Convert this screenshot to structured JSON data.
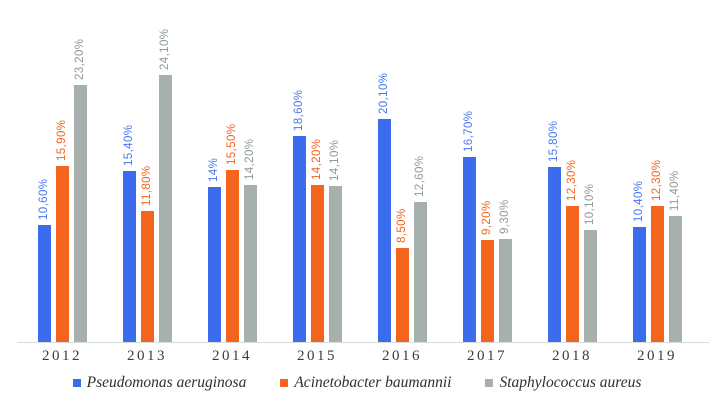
{
  "chart_data": {
    "type": "bar",
    "title": "",
    "xlabel": "",
    "ylabel": "",
    "categories": [
      "2012",
      "2013",
      "2014",
      "2015",
      "2016",
      "2017",
      "2018",
      "2019"
    ],
    "series": [
      {
        "name": "Pseudomonas aeruginosa",
        "color": "#3b6cee",
        "label_color": "#4a77ee",
        "values": [
          10.6,
          15.4,
          14,
          18.6,
          20.1,
          16.7,
          15.8,
          10.4
        ],
        "labels": [
          "10,60%",
          "15,40%",
          "14%",
          "18,60%",
          "20,10%",
          "16,70%",
          "15,80%",
          "10,40%"
        ]
      },
      {
        "name": "Acinetobacter baumannii",
        "color": "#f4641d",
        "label_color": "#f4641d",
        "values": [
          15.9,
          11.8,
          15.5,
          14.2,
          8.5,
          9.2,
          12.3,
          12.3
        ],
        "labels": [
          "15,90%",
          "11,80%",
          "15,50%",
          "14,20%",
          "8,50%",
          "9,20%",
          "12,30%",
          "12,30%"
        ]
      },
      {
        "name": "Staphylococcus aureus",
        "color": "#a8b0ae",
        "label_color": "#8f9b98",
        "values": [
          23.2,
          24.1,
          14.2,
          14.1,
          12.6,
          9.3,
          10.1,
          11.4
        ],
        "labels": [
          "23,20%",
          "24,10%",
          "14,20%",
          "14,10%",
          "12,60%",
          "9,30%",
          "10,10%",
          "11,40%"
        ]
      }
    ],
    "ylim": [
      0,
      25
    ],
    "value_suffix": "%",
    "decimal_separator": ",",
    "grid": false,
    "legend_position": "bottom",
    "axis_color": "#d8dcda"
  }
}
